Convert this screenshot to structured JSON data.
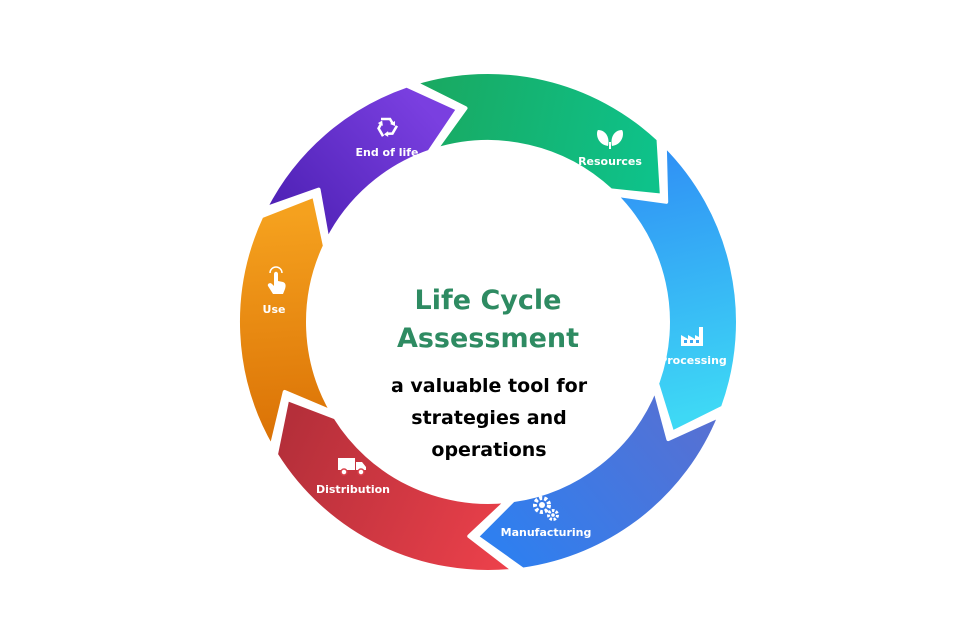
{
  "diagram": {
    "title_lines": [
      "Life Cycle",
      "Assessment"
    ],
    "subtitle_lines": [
      "a valuable tool for",
      "strategies and",
      "operations"
    ],
    "segments": [
      {
        "id": "resources",
        "label": "Resources",
        "icon": "leaves-icon",
        "color_start": "#1aa75e",
        "color_end": "#0ec28a"
      },
      {
        "id": "processing",
        "label": "Processing",
        "icon": "factory-icon",
        "color_start": "#2f8df5",
        "color_end": "#3ed8f5"
      },
      {
        "id": "manufacturing",
        "label": "Manufacturing",
        "icon": "gears-icon",
        "color_start": "#5a6fd0",
        "color_end": "#2f7fef"
      },
      {
        "id": "distribution",
        "label": "Distribution",
        "icon": "truck-icon",
        "color_start": "#f0424c",
        "color_end": "#b52f3a"
      },
      {
        "id": "use",
        "label": "Use",
        "icon": "hand-tap-icon",
        "color_start": "#d96f04",
        "color_end": "#f5a11e"
      },
      {
        "id": "end_of_life",
        "label": "End of life",
        "icon": "recycle-icon",
        "color_start": "#4b1fb2",
        "color_end": "#7a3fe0"
      }
    ]
  },
  "colors": {
    "title": "#2e8b62",
    "subtitle": "#000000",
    "background": "#ffffff"
  }
}
